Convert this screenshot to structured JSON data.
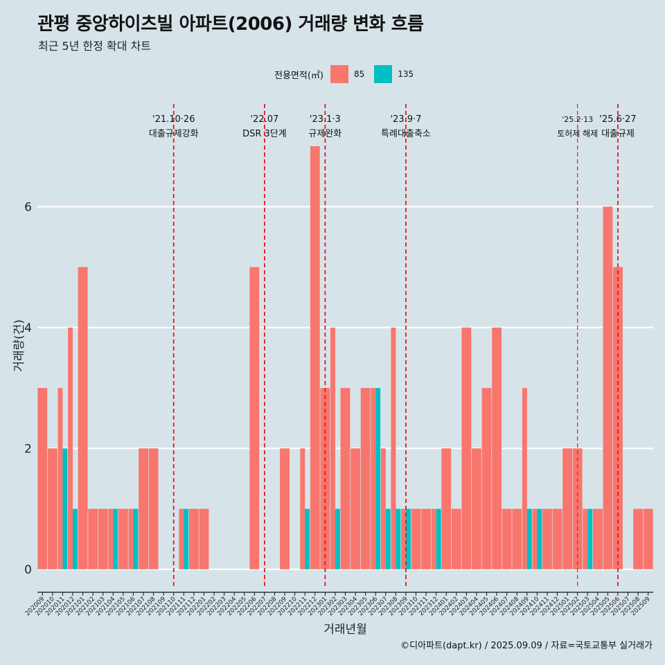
{
  "chart_data": {
    "type": "bar",
    "title": "관평 중앙하이츠빌 아파트(2006) 거래량 변화 흐름",
    "subtitle": "최근 5년 한정 확대 차트",
    "xlabel": "거래년월",
    "ylabel": "거래량(건)",
    "ylim": [
      -0.3,
      7.7
    ],
    "y_ticks": [
      0,
      2,
      4,
      6
    ],
    "grid": "horizontal major lines, white",
    "legend": {
      "title": "전용면적(㎡)",
      "placement": "top",
      "entries": [
        {
          "label": "85",
          "color": "#F8766D"
        },
        {
          "label": "135",
          "color": "#00BFC4"
        }
      ]
    },
    "categories": [
      "202009",
      "202010",
      "202011",
      "202012",
      "202101",
      "202102",
      "202103",
      "202104",
      "202105",
      "202106",
      "202107",
      "202108",
      "202109",
      "202110",
      "202111",
      "202112",
      "202201",
      "202202",
      "202203",
      "202204",
      "202205",
      "202206",
      "202207",
      "202208",
      "202209",
      "202210",
      "202211",
      "202212",
      "202301",
      "202302",
      "202303",
      "202304",
      "202305",
      "202306",
      "202307",
      "202308",
      "202309",
      "202310",
      "202311",
      "202312",
      "202401",
      "202402",
      "202403",
      "202404",
      "202405",
      "202406",
      "202407",
      "202408",
      "202409",
      "202410",
      "202411",
      "202412",
      "202501",
      "202502",
      "202503",
      "202504",
      "202505",
      "202506",
      "202507",
      "202508",
      "202509"
    ],
    "series": [
      {
        "name": "85",
        "color": "#F8766D",
        "values": [
          3,
          2,
          3,
          4,
          5,
          1,
          1,
          1,
          1,
          1,
          2,
          2,
          0,
          0,
          1,
          1,
          1,
          0,
          0,
          0,
          0,
          5,
          0,
          0,
          2,
          0,
          2,
          7,
          3,
          4,
          3,
          2,
          3,
          3,
          2,
          4,
          1,
          1,
          1,
          1,
          2,
          1,
          4,
          2,
          3,
          4,
          1,
          1,
          3,
          1,
          1,
          1,
          2,
          2,
          1,
          1,
          6,
          5,
          0,
          1,
          1
        ]
      },
      {
        "name": "135",
        "color": "#00BFC4",
        "values": [
          0,
          0,
          2,
          1,
          0,
          0,
          0,
          1,
          0,
          1,
          0,
          0,
          0,
          0,
          1,
          0,
          0,
          0,
          0,
          0,
          0,
          0,
          0,
          0,
          0,
          0,
          1,
          0,
          0,
          1,
          0,
          0,
          0,
          3,
          1,
          1,
          1,
          0,
          0,
          1,
          0,
          0,
          0,
          0,
          0,
          0,
          0,
          0,
          1,
          1,
          0,
          0,
          0,
          0,
          1,
          0,
          0,
          0,
          0,
          0,
          0
        ]
      }
    ],
    "events": [
      {
        "month": "202110",
        "date": "'21.10·26",
        "label": "대출규제강화",
        "style": "major"
      },
      {
        "month": "202207",
        "date": "'22.07",
        "label": "DSR 3단계",
        "style": "major"
      },
      {
        "month": "202301",
        "date": "'23.1·3",
        "label": "규제완화",
        "style": "major"
      },
      {
        "month": "202309",
        "date": "'23.9·7",
        "label": "특례대출축소",
        "style": "major"
      },
      {
        "month": "202502",
        "date": "'25.2·13",
        "label": "토허제 해제",
        "style": "minor"
      },
      {
        "month": "202506",
        "date": "'25.6·27",
        "label": "대출규제",
        "style": "major"
      }
    ],
    "caption": "©디아파트(dapt.kr) / 2025.09.09 / 자료=국토교통부 실거래가"
  }
}
